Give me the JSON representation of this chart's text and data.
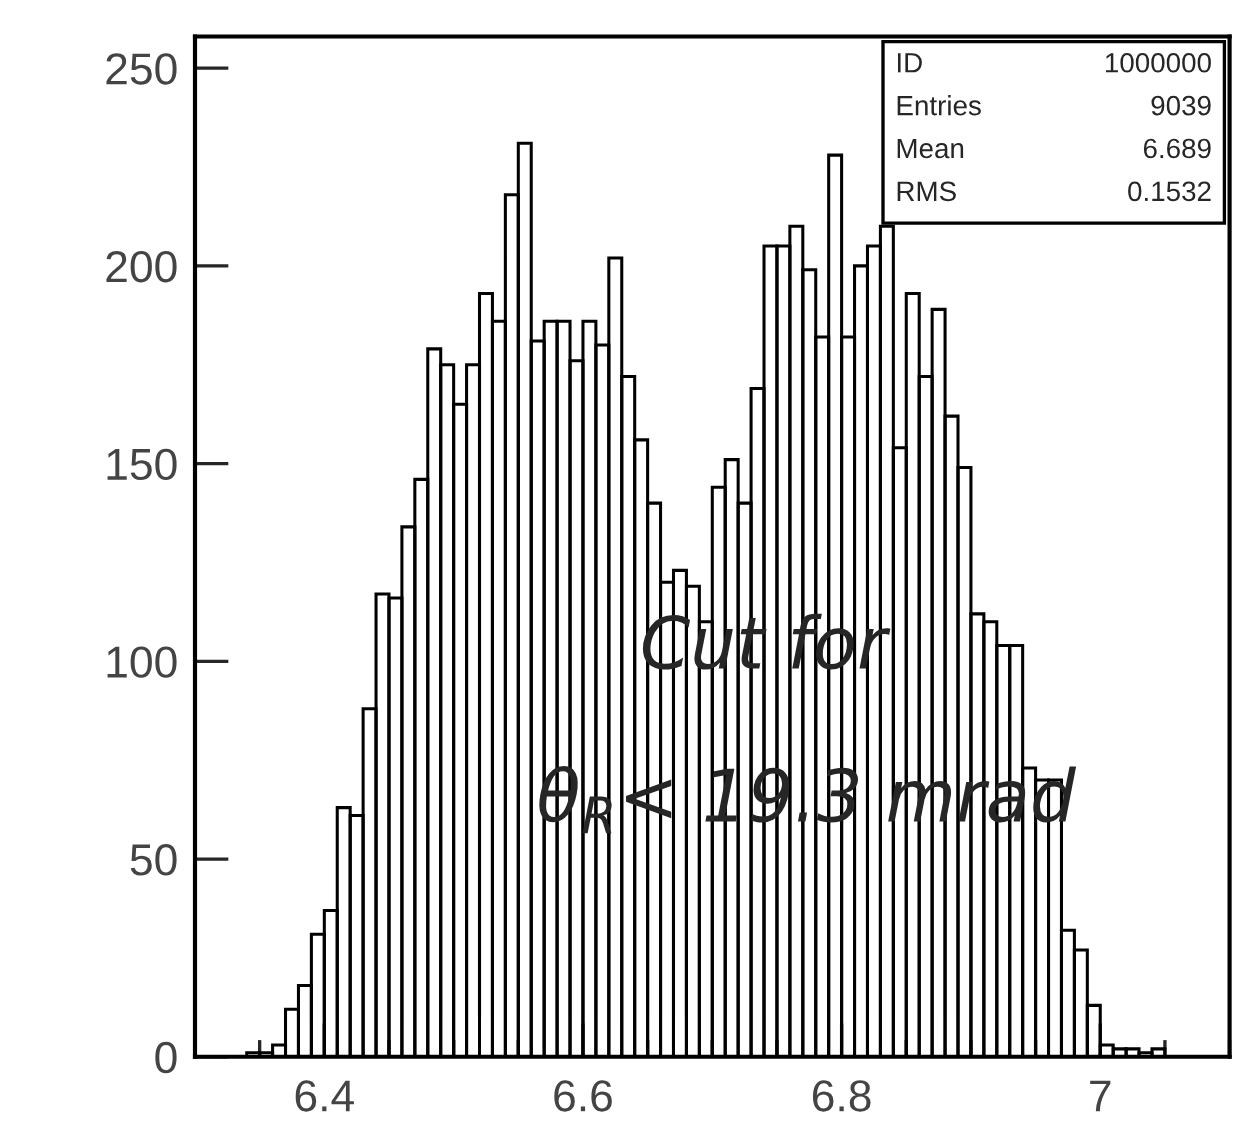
{
  "chart_data": {
    "type": "histogram",
    "bins": [
      6.34,
      6.35,
      6.36,
      6.37,
      6.38,
      6.39,
      6.4,
      6.41,
      6.42,
      6.43,
      6.44,
      6.45,
      6.46,
      6.47,
      6.48,
      6.49,
      6.5,
      6.51,
      6.52,
      6.53,
      6.54,
      6.55,
      6.56,
      6.57,
      6.58,
      6.59,
      6.6,
      6.61,
      6.62,
      6.63,
      6.64,
      6.65,
      6.66,
      6.67,
      6.68,
      6.69,
      6.7,
      6.71,
      6.72,
      6.73,
      6.74,
      6.75,
      6.76,
      6.77,
      6.78,
      6.79,
      6.8,
      6.81,
      6.82,
      6.83,
      6.84,
      6.85,
      6.86,
      6.87,
      6.88,
      6.89,
      6.9,
      6.91,
      6.92,
      6.93,
      6.94,
      6.95,
      6.96,
      6.97,
      6.98,
      6.99,
      7.0,
      7.01,
      7.02,
      7.03,
      7.04,
      7.05
    ],
    "values": [
      1,
      1,
      3,
      12,
      18,
      31,
      37,
      63,
      61,
      88,
      117,
      116,
      134,
      146,
      179,
      175,
      165,
      175,
      193,
      186,
      218,
      231,
      181,
      186,
      186,
      176,
      186,
      180,
      202,
      172,
      156,
      140,
      120,
      123,
      119,
      110,
      144,
      151,
      140,
      169,
      205,
      205,
      210,
      199,
      182,
      228,
      182,
      200,
      205,
      210,
      154,
      193,
      172,
      189,
      162,
      149,
      112,
      110,
      104,
      104,
      73,
      70,
      70,
      32,
      27,
      13,
      3,
      2,
      2,
      1,
      2
    ],
    "color": "#000000",
    "xlim": [
      6.3,
      7.1
    ],
    "xticks": [
      6.4,
      6.6,
      6.8,
      7
    ],
    "ylim": [
      0,
      258
    ],
    "yticks": [
      0,
      50,
      100,
      150,
      200,
      250
    ],
    "grid": false,
    "legend": false,
    "annotations": [
      "ID",
      "1000000",
      "Entries",
      "9039",
      "Mean",
      "6.689",
      "RMS",
      "0.1532",
      "Cut for",
      "θ$_{R}$< 19.3 mrad"
    ]
  }
}
